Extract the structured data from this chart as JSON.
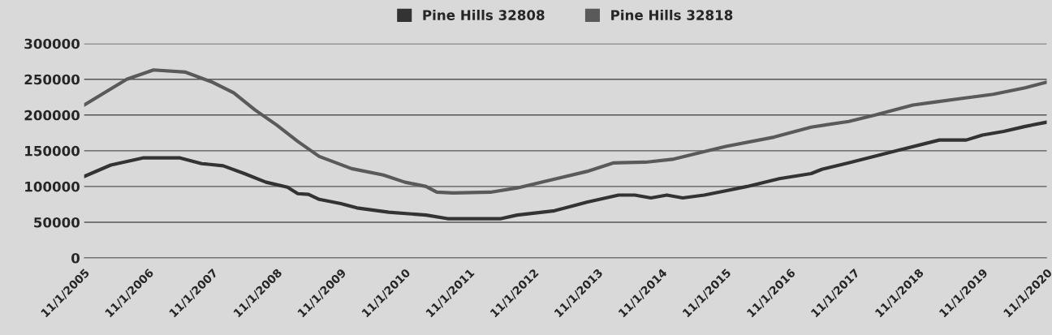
{
  "chart_data": {
    "type": "line",
    "series": [
      {
        "name": "Pine Hills 32808",
        "color": "#333333",
        "x": [
          "2005-11-01",
          "2006-04-01",
          "2006-10-01",
          "2007-05-01",
          "2007-09-01",
          "2008-01-01",
          "2008-05-01",
          "2008-09-01",
          "2009-01-01",
          "2009-03-01",
          "2009-05-01",
          "2009-07-01",
          "2009-11-01",
          "2010-02-01",
          "2010-08-01",
          "2011-03-01",
          "2011-07-01",
          "2012-05-01",
          "2012-08-01",
          "2013-03-01",
          "2013-09-01",
          "2014-03-01",
          "2014-06-01",
          "2014-09-01",
          "2014-12-01",
          "2015-03-01",
          "2015-07-01",
          "2015-11-01",
          "2016-03-01",
          "2016-09-01",
          "2017-03-01",
          "2017-05-01",
          "2017-10-01",
          "2018-07-01",
          "2019-03-01",
          "2019-08-01",
          "2019-11-01",
          "2020-03-01",
          "2020-07-01",
          "2020-11-01"
        ],
        "values": [
          114000,
          130000,
          140000,
          140000,
          132000,
          129000,
          118000,
          106000,
          99000,
          90000,
          89000,
          82000,
          76000,
          70000,
          64000,
          60000,
          55000,
          55000,
          60000,
          66000,
          78000,
          88000,
          88000,
          84000,
          88000,
          84000,
          88000,
          94000,
          100000,
          111000,
          118000,
          124000,
          133000,
          150000,
          165000,
          165000,
          172000,
          177000,
          184000,
          190000
        ]
      },
      {
        "name": "Pine Hills 32818",
        "color": "#5a5a5a",
        "x": [
          "2005-11-01",
          "2006-07-01",
          "2006-12-01",
          "2007-06-01",
          "2007-11-01",
          "2008-03-01",
          "2008-07-01",
          "2008-11-01",
          "2009-03-01",
          "2009-07-01",
          "2010-01-01",
          "2010-07-01",
          "2010-11-01",
          "2011-03-01",
          "2011-05-01",
          "2011-08-01",
          "2012-03-01",
          "2012-08-01",
          "2013-04-01",
          "2013-09-01",
          "2014-02-01",
          "2014-08-01",
          "2015-01-01",
          "2015-06-01",
          "2015-11-01",
          "2016-08-01",
          "2017-03-01",
          "2017-10-01",
          "2018-03-01",
          "2018-10-01",
          "2019-02-01",
          "2019-07-01",
          "2020-01-01",
          "2020-07-01",
          "2020-11-01"
        ],
        "values": [
          214000,
          250000,
          263000,
          260000,
          246000,
          231000,
          207000,
          186000,
          163000,
          142000,
          125000,
          116000,
          106000,
          100000,
          92000,
          91000,
          92000,
          98000,
          112000,
          121000,
          133000,
          134000,
          138000,
          147000,
          156000,
          169000,
          183000,
          191000,
          200000,
          214000,
          218000,
          223000,
          229000,
          238000,
          246000
        ]
      }
    ],
    "xlim": [
      "2005-11-01",
      "2020-11-01"
    ],
    "xticks": [
      {
        "value": "2005-11-01",
        "label": "11/1/2005"
      },
      {
        "value": "2006-11-01",
        "label": "11/1/2006"
      },
      {
        "value": "2007-11-01",
        "label": "11/1/2007"
      },
      {
        "value": "2008-11-01",
        "label": "11/1/2008"
      },
      {
        "value": "2009-11-01",
        "label": "11/1/2009"
      },
      {
        "value": "2010-11-01",
        "label": "11/1/2010"
      },
      {
        "value": "2011-11-01",
        "label": "11/1/2011"
      },
      {
        "value": "2012-11-01",
        "label": "11/1/2012"
      },
      {
        "value": "2013-11-01",
        "label": "11/1/2013"
      },
      {
        "value": "2014-11-01",
        "label": "11/1/2014"
      },
      {
        "value": "2015-11-01",
        "label": "11/1/2015"
      },
      {
        "value": "2016-11-01",
        "label": "11/1/2016"
      },
      {
        "value": "2017-11-01",
        "label": "11/1/2017"
      },
      {
        "value": "2018-11-01",
        "label": "11/1/2018"
      },
      {
        "value": "2019-11-01",
        "label": "11/1/2019"
      },
      {
        "value": "2020-11-01",
        "label": "11/1/2020"
      }
    ],
    "ylim": [
      0,
      300000
    ],
    "yticks": [
      0,
      50000,
      100000,
      150000,
      200000,
      250000,
      300000
    ],
    "grid": "y",
    "legend": "top",
    "marker": "none",
    "line_style": "solid"
  }
}
